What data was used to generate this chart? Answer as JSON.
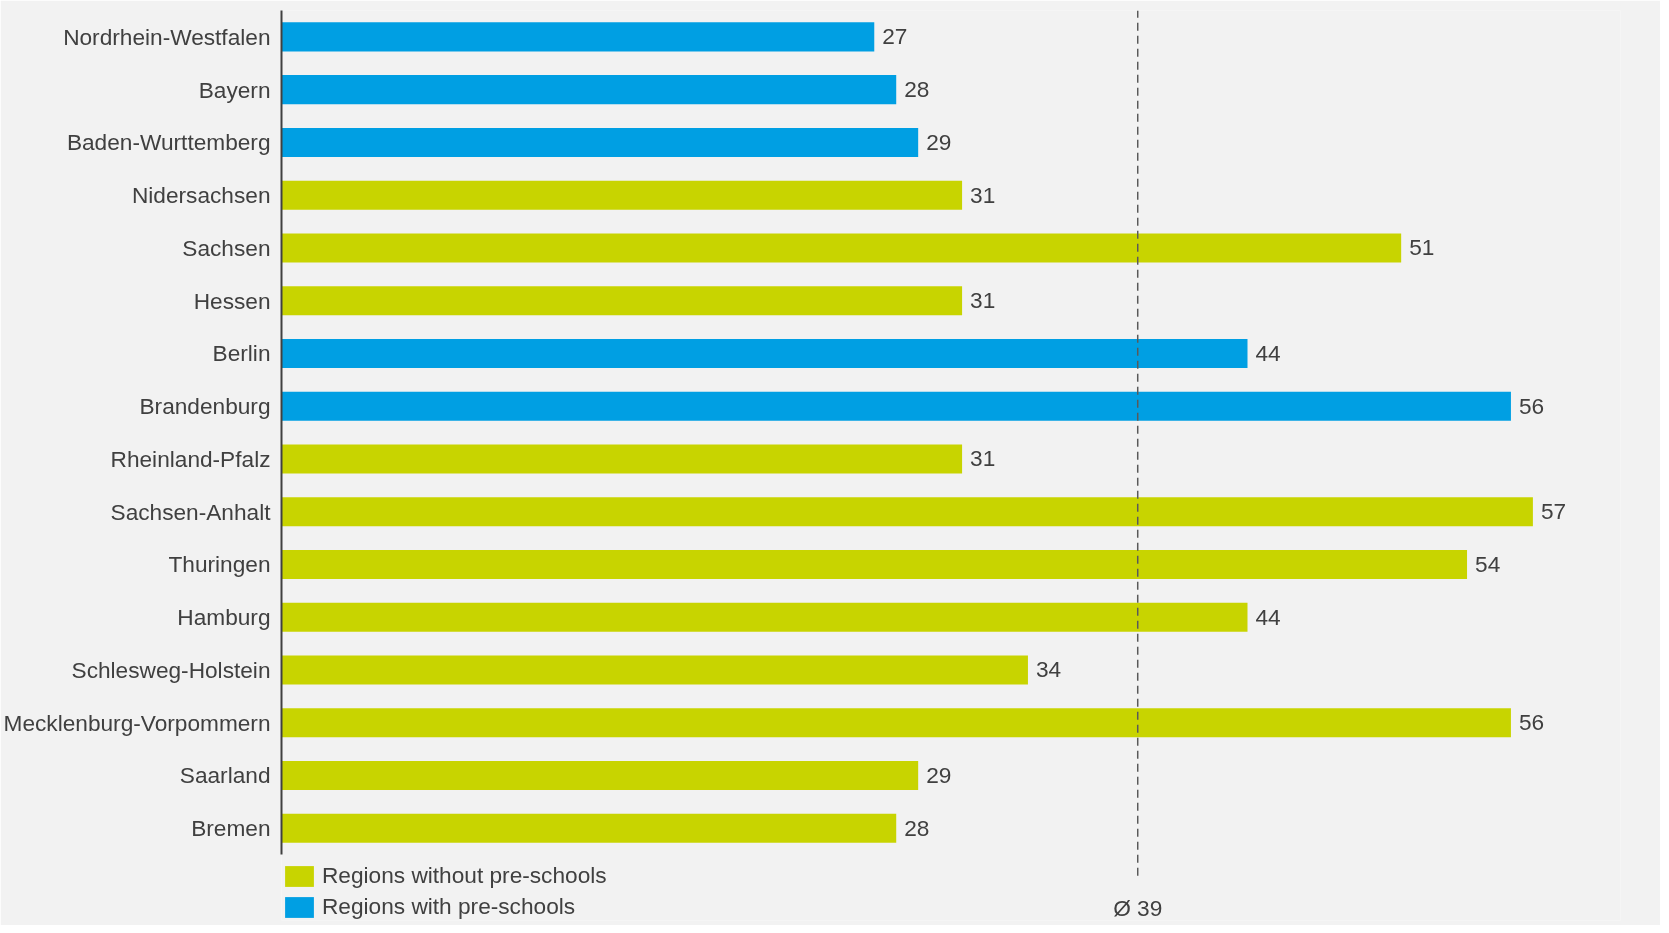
{
  "chart_data": {
    "type": "bar",
    "orientation": "horizontal",
    "categories": [
      "Nordrhein-Westfalen",
      "Bayern",
      "Baden-Wurttemberg",
      "Nidersachsen",
      "Sachsen",
      "Hessen",
      "Berlin",
      "Brandenburg",
      "Rheinland-Pfalz",
      "Sachsen-Anhalt",
      "Thuringen",
      "Hamburg",
      "Schlesweg-Holstein",
      "Mecklenburg-Vorpommern",
      "Saarland",
      "Bremen"
    ],
    "series": [
      {
        "name": "Regions without pre-schools",
        "color": "#c8d400",
        "values": [
          null,
          null,
          null,
          31,
          51,
          31,
          null,
          null,
          31,
          57,
          54,
          44,
          34,
          56,
          29,
          28
        ]
      },
      {
        "name": "Regions with pre-schools",
        "color": "#009fe3",
        "values": [
          27,
          28,
          29,
          null,
          null,
          null,
          44,
          56,
          null,
          null,
          null,
          null,
          null,
          null,
          null,
          null
        ]
      }
    ],
    "data_labels": true,
    "ref_lines": [
      {
        "axis": "x",
        "value": 39,
        "label": "Ø 39",
        "line_style": "dashed",
        "color": "#595959"
      }
    ],
    "legend": "bottom left",
    "tick_labels": "y",
    "grid": false
  }
}
